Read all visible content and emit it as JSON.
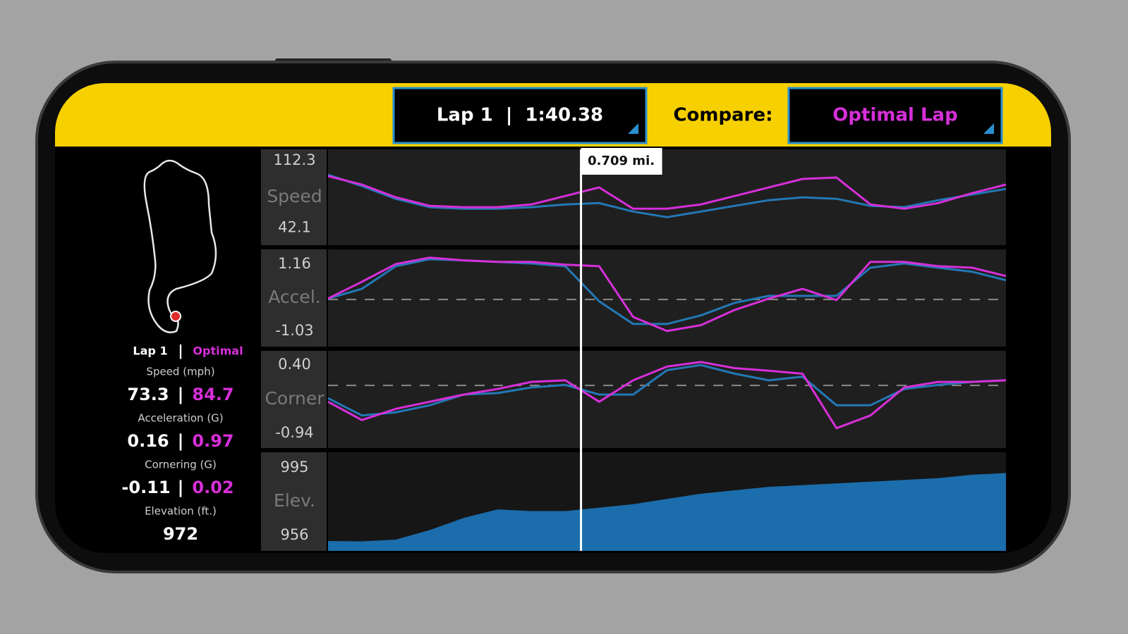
{
  "header": {
    "lap_select": "Lap 1  |  1:40.38",
    "compare_label": "Compare:",
    "compare_select": "Optimal Lap"
  },
  "cursor": {
    "value": 0.709,
    "label": "0.709 mi."
  },
  "stats": {
    "legend": {
      "lap": "Lap 1",
      "separator": "|",
      "optimal": "Optimal"
    },
    "speed": {
      "label": "Speed (mph)",
      "lap": "73.3",
      "separator": "|",
      "optimal": "84.7"
    },
    "acceleration": {
      "label": "Acceleration (G)",
      "lap": "0.16",
      "separator": "|",
      "optimal": "0.97"
    },
    "cornering": {
      "label": "Cornering (G)",
      "lap": "-0.11",
      "separator": "|",
      "optimal": "0.02"
    },
    "elevation": {
      "label": "Elevation (ft.)",
      "value": "972"
    }
  },
  "chart_data": [
    {
      "type": "line",
      "label": "Speed",
      "ylim": [
        24,
        124
      ],
      "yticks": [
        42.1,
        112.3
      ],
      "xlim": [
        0,
        1.9
      ],
      "x": [
        0,
        0.095,
        0.19,
        0.285,
        0.38,
        0.475,
        0.57,
        0.665,
        0.76,
        0.855,
        0.95,
        1.045,
        1.14,
        1.235,
        1.33,
        1.425,
        1.52,
        1.615,
        1.71,
        1.805,
        1.9
      ],
      "series": [
        {
          "color": "#2378b5",
          "values": [
            97.5,
            85.7,
            72.4,
            63.6,
            62.0,
            62.0,
            63.6,
            66.5,
            67.9,
            59.1,
            53.2,
            59.1,
            65.0,
            70.9,
            73.9,
            72.4,
            65.0,
            63.6,
            70.9,
            76.8,
            82.7
          ]
        },
        {
          "color": "#d62fd9",
          "values": [
            96.0,
            87.2,
            73.9,
            65.0,
            63.6,
            63.6,
            66.5,
            75.3,
            84.2,
            62.0,
            62.0,
            66.5,
            75.3,
            84.2,
            93.1,
            94.6,
            66.5,
            62.0,
            67.9,
            78.3,
            87.2
          ]
        }
      ]
    },
    {
      "type": "line",
      "label": "Accel.",
      "ylim": [
        -1.54,
        1.64
      ],
      "yticks": [
        -1.03,
        1.16
      ],
      "baseline": 0,
      "xlim": [
        0,
        1.9
      ],
      "x": [
        0,
        0.095,
        0.19,
        0.285,
        0.38,
        0.475,
        0.57,
        0.665,
        0.76,
        0.855,
        0.95,
        1.045,
        1.14,
        1.235,
        1.33,
        1.425,
        1.52,
        1.615,
        1.71,
        1.805,
        1.9
      ],
      "series": [
        {
          "color": "#2378b5",
          "values": [
            0.03,
            0.35,
            1.09,
            1.32,
            1.28,
            1.23,
            1.18,
            1.09,
            -0.06,
            -0.8,
            -0.8,
            -0.52,
            -0.11,
            0.12,
            0.12,
            0.12,
            1.04,
            1.18,
            1.04,
            0.91,
            0.63
          ]
        },
        {
          "color": "#d62fd9",
          "values": [
            0.03,
            0.58,
            1.16,
            1.37,
            1.28,
            1.23,
            1.23,
            1.14,
            1.09,
            -0.57,
            -1.03,
            -0.84,
            -0.34,
            0.03,
            0.35,
            -0.02,
            1.23,
            1.23,
            1.09,
            1.04,
            0.77
          ]
        }
      ]
    },
    {
      "type": "line",
      "label": "Corner",
      "ylim": [
        -1.23,
        0.68
      ],
      "yticks": [
        -0.94,
        {
          "value": 0.4,
          "label": "0.40"
        }
      ],
      "baseline": 0,
      "xlim": [
        0,
        1.9
      ],
      "x": [
        0,
        0.095,
        0.19,
        0.285,
        0.38,
        0.475,
        0.57,
        0.665,
        0.76,
        0.855,
        0.95,
        1.045,
        1.14,
        1.235,
        1.33,
        1.425,
        1.52,
        1.615,
        1.71,
        1.805,
        1.9
      ],
      "series": [
        {
          "color": "#2378b5",
          "values": [
            -0.25,
            -0.59,
            -0.53,
            -0.39,
            -0.18,
            -0.15,
            -0.04,
            0.01,
            -0.18,
            -0.18,
            0.3,
            0.4,
            0.23,
            0.1,
            0.17,
            -0.39,
            -0.39,
            -0.07,
            0.01,
            0.07,
            0.1
          ]
        },
        {
          "color": "#d62fd9",
          "values": [
            -0.32,
            -0.68,
            -0.46,
            -0.32,
            -0.18,
            -0.07,
            0.07,
            0.1,
            -0.32,
            0.1,
            0.37,
            0.46,
            0.34,
            0.29,
            0.23,
            -0.84,
            -0.59,
            -0.04,
            0.07,
            0.07,
            0.1
          ]
        }
      ]
    },
    {
      "type": "area",
      "label": "Elev.",
      "ylim": [
        947,
        1004
      ],
      "yticks": [
        956,
        995
      ],
      "xlim": [
        0,
        1.9
      ],
      "x": [
        0,
        0.095,
        0.19,
        0.285,
        0.38,
        0.475,
        0.57,
        0.665,
        0.76,
        0.855,
        0.95,
        1.045,
        1.14,
        1.235,
        1.33,
        1.425,
        1.52,
        1.615,
        1.71,
        1.805,
        1.9
      ],
      "series": [
        {
          "color": "#1b6dab",
          "values": [
            952.7,
            952.5,
            953.5,
            959,
            966,
            971,
            970,
            970,
            972,
            974,
            977,
            980,
            982,
            984,
            985,
            986,
            987,
            988,
            989,
            991,
            992
          ]
        }
      ]
    }
  ]
}
